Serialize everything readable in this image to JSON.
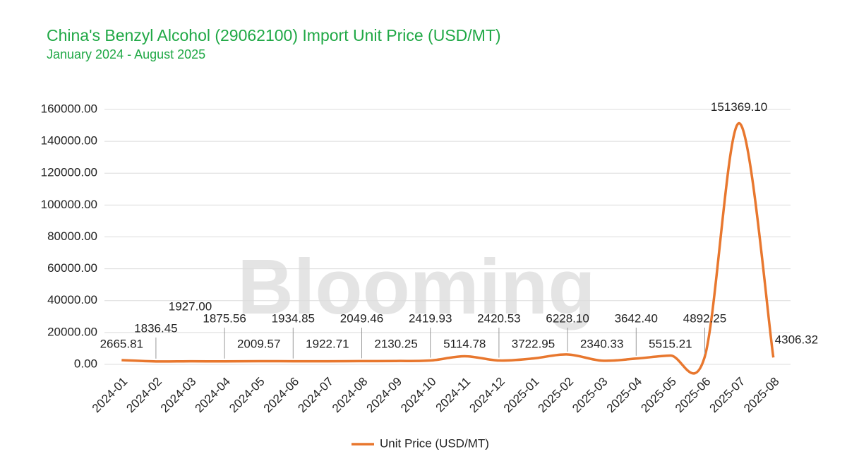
{
  "chart_data": {
    "type": "line",
    "title": "China's Benzyl Alcohol (29062100) Import Unit Price (USD/MT)",
    "subtitle": "January 2024 - August 2025",
    "watermark": "Blooming",
    "categories": [
      "2024-01",
      "2024-02",
      "2024-03",
      "2024-04",
      "2024-05",
      "2024-06",
      "2024-07",
      "2024-08",
      "2024-09",
      "2024-10",
      "2024-11",
      "2024-12",
      "2025-01",
      "2025-02",
      "2025-03",
      "2025-04",
      "2025-05",
      "2025-06",
      "2025-07",
      "2025-08"
    ],
    "series": [
      {
        "name": "Unit Price (USD/MT)",
        "color": "#e8772e",
        "values": [
          2665.81,
          1836.45,
          1927.0,
          1875.56,
          2009.57,
          1934.85,
          1922.71,
          2049.46,
          2130.25,
          2419.93,
          5114.78,
          2420.53,
          3722.95,
          6228.1,
          2340.33,
          3642.4,
          5515.21,
          4892.25,
          151369.1,
          4306.32
        ],
        "value_labels": [
          "2665.81",
          "1836.45",
          "1927.00",
          "1875.56",
          "2009.57",
          "1934.85",
          "1922.71",
          "2049.46",
          "2130.25",
          "2419.93",
          "5114.78",
          "2420.53",
          "3722.95",
          "6228.10",
          "2340.33",
          "3642.40",
          "5515.21",
          "4892.25",
          "151369.10",
          "4306.32"
        ]
      }
    ],
    "ylim": [
      0,
      160000
    ],
    "yticks": [
      {
        "value": 0,
        "label": "0.00"
      },
      {
        "value": 20000,
        "label": "20000.00"
      },
      {
        "value": 40000,
        "label": "40000.00"
      },
      {
        "value": 60000,
        "label": "60000.00"
      },
      {
        "value": 80000,
        "label": "80000.00"
      },
      {
        "value": 100000,
        "label": "100000.00"
      },
      {
        "value": 120000,
        "label": "120000.00"
      },
      {
        "value": 140000,
        "label": "140000.00"
      },
      {
        "value": 160000,
        "label": "160000.00"
      }
    ],
    "grid": true,
    "legend": "bottom"
  }
}
